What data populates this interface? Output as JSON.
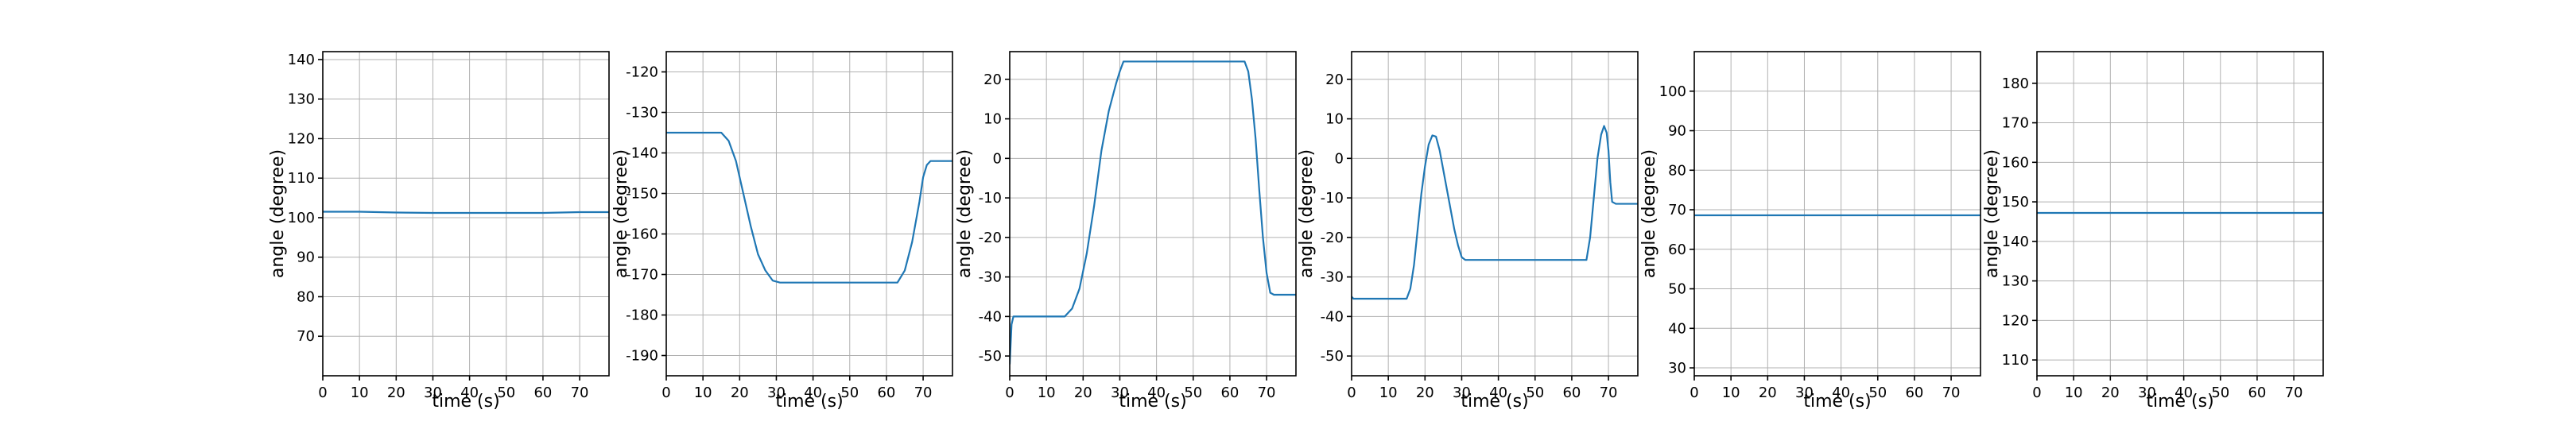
{
  "colors": {
    "series": "#1f77b4",
    "grid": "#b0b0b0",
    "axis": "#000000"
  },
  "chart_data": [
    {
      "type": "line",
      "xlabel": "time (s)",
      "ylabel": "angle (degree)",
      "xlim": [
        0,
        78
      ],
      "ylim": [
        60,
        142
      ],
      "xticks": [
        0,
        10,
        20,
        30,
        40,
        50,
        60,
        70
      ],
      "yticks": [
        70,
        80,
        90,
        100,
        110,
        120,
        130,
        140
      ],
      "grid": true,
      "series": [
        {
          "x": [
            0,
            10,
            20,
            30,
            40,
            50,
            60,
            70,
            78
          ],
          "y": [
            101.5,
            101.5,
            101.3,
            101.2,
            101.2,
            101.2,
            101.2,
            101.4,
            101.4
          ]
        }
      ]
    },
    {
      "type": "line",
      "xlabel": "time (s)",
      "ylabel": "angle (degree)",
      "xlim": [
        0,
        78
      ],
      "ylim": [
        -195,
        -115
      ],
      "xticks": [
        0,
        10,
        20,
        30,
        40,
        50,
        60,
        70
      ],
      "yticks": [
        -190,
        -180,
        -170,
        -160,
        -150,
        -140,
        -130,
        -120
      ],
      "grid": true,
      "series": [
        {
          "x": [
            0,
            15,
            17,
            19,
            21,
            23,
            25,
            27,
            29,
            31,
            40,
            50,
            60,
            63,
            65,
            67,
            69,
            70,
            71,
            72,
            78
          ],
          "y": [
            -135,
            -135,
            -137,
            -142,
            -150,
            -158,
            -165,
            -169,
            -171.5,
            -172,
            -172,
            -172,
            -172,
            -172,
            -169,
            -162,
            -152,
            -146,
            -143,
            -142,
            -142
          ]
        }
      ]
    },
    {
      "type": "line",
      "xlabel": "time (s)",
      "ylabel": "angle (degree)",
      "xlim": [
        0,
        78
      ],
      "ylim": [
        -55,
        27
      ],
      "xticks": [
        0,
        10,
        20,
        30,
        40,
        50,
        60,
        70
      ],
      "yticks": [
        -50,
        -40,
        -30,
        -20,
        -10,
        0,
        10,
        20
      ],
      "grid": true,
      "series": [
        {
          "x": [
            0,
            0.5,
            1,
            15,
            17,
            19,
            21,
            23,
            25,
            27,
            29,
            30,
            31,
            40,
            50,
            60,
            64,
            65,
            66,
            67,
            68,
            69,
            70,
            71,
            72,
            78
          ],
          "y": [
            -52,
            -42,
            -40,
            -40,
            -38,
            -33,
            -24,
            -12,
            2,
            12,
            19,
            22,
            24.5,
            24.5,
            24.5,
            24.5,
            24.5,
            22,
            15,
            5,
            -8,
            -20,
            -29,
            -34,
            -34.5,
            -34.5
          ]
        }
      ]
    },
    {
      "type": "line",
      "xlabel": "time (s)",
      "ylabel": "angle (degree)",
      "xlim": [
        0,
        78
      ],
      "ylim": [
        -55,
        27
      ],
      "xticks": [
        0,
        10,
        20,
        30,
        40,
        50,
        60,
        70
      ],
      "yticks": [
        -50,
        -40,
        -30,
        -20,
        -10,
        0,
        10,
        20
      ],
      "grid": true,
      "series": [
        {
          "x": [
            0,
            0.5,
            1,
            15,
            16,
            17,
            18,
            19,
            20,
            21,
            22,
            23,
            24,
            25,
            26,
            27,
            28,
            29,
            30,
            31,
            40,
            50,
            60,
            64,
            65,
            66,
            67,
            68,
            68.8,
            69.5,
            70,
            70.5,
            71,
            72,
            78
          ],
          "y": [
            -35,
            -35.5,
            -35.5,
            -35.5,
            -33,
            -27,
            -18,
            -9,
            -2,
            3.5,
            5.8,
            5.5,
            2,
            -3,
            -8,
            -13,
            -18,
            -22,
            -25,
            -25.7,
            -25.7,
            -25.7,
            -25.7,
            -25.7,
            -20,
            -10,
            0,
            6,
            8.2,
            6.5,
            2,
            -6,
            -11,
            -11.5,
            -11.5
          ]
        }
      ]
    },
    {
      "type": "line",
      "xlabel": "time (s)",
      "ylabel": "angle (degree)",
      "xlim": [
        0,
        78
      ],
      "ylim": [
        28,
        110
      ],
      "xticks": [
        0,
        10,
        20,
        30,
        40,
        50,
        60,
        70
      ],
      "yticks": [
        30,
        40,
        50,
        60,
        70,
        80,
        90,
        100
      ],
      "grid": true,
      "series": [
        {
          "x": [
            0,
            20,
            40,
            60,
            78
          ],
          "y": [
            68.6,
            68.6,
            68.6,
            68.6,
            68.6
          ]
        }
      ]
    },
    {
      "type": "line",
      "xlabel": "time (s)",
      "ylabel": "angle (degree)",
      "xlim": [
        0,
        78
      ],
      "ylim": [
        106,
        188
      ],
      "xticks": [
        0,
        10,
        20,
        30,
        40,
        50,
        60,
        70
      ],
      "yticks": [
        110,
        120,
        130,
        140,
        150,
        160,
        170,
        180
      ],
      "grid": true,
      "series": [
        {
          "x": [
            0,
            20,
            40,
            60,
            78
          ],
          "y": [
            147.2,
            147.2,
            147.2,
            147.2,
            147.2
          ]
        }
      ]
    }
  ]
}
